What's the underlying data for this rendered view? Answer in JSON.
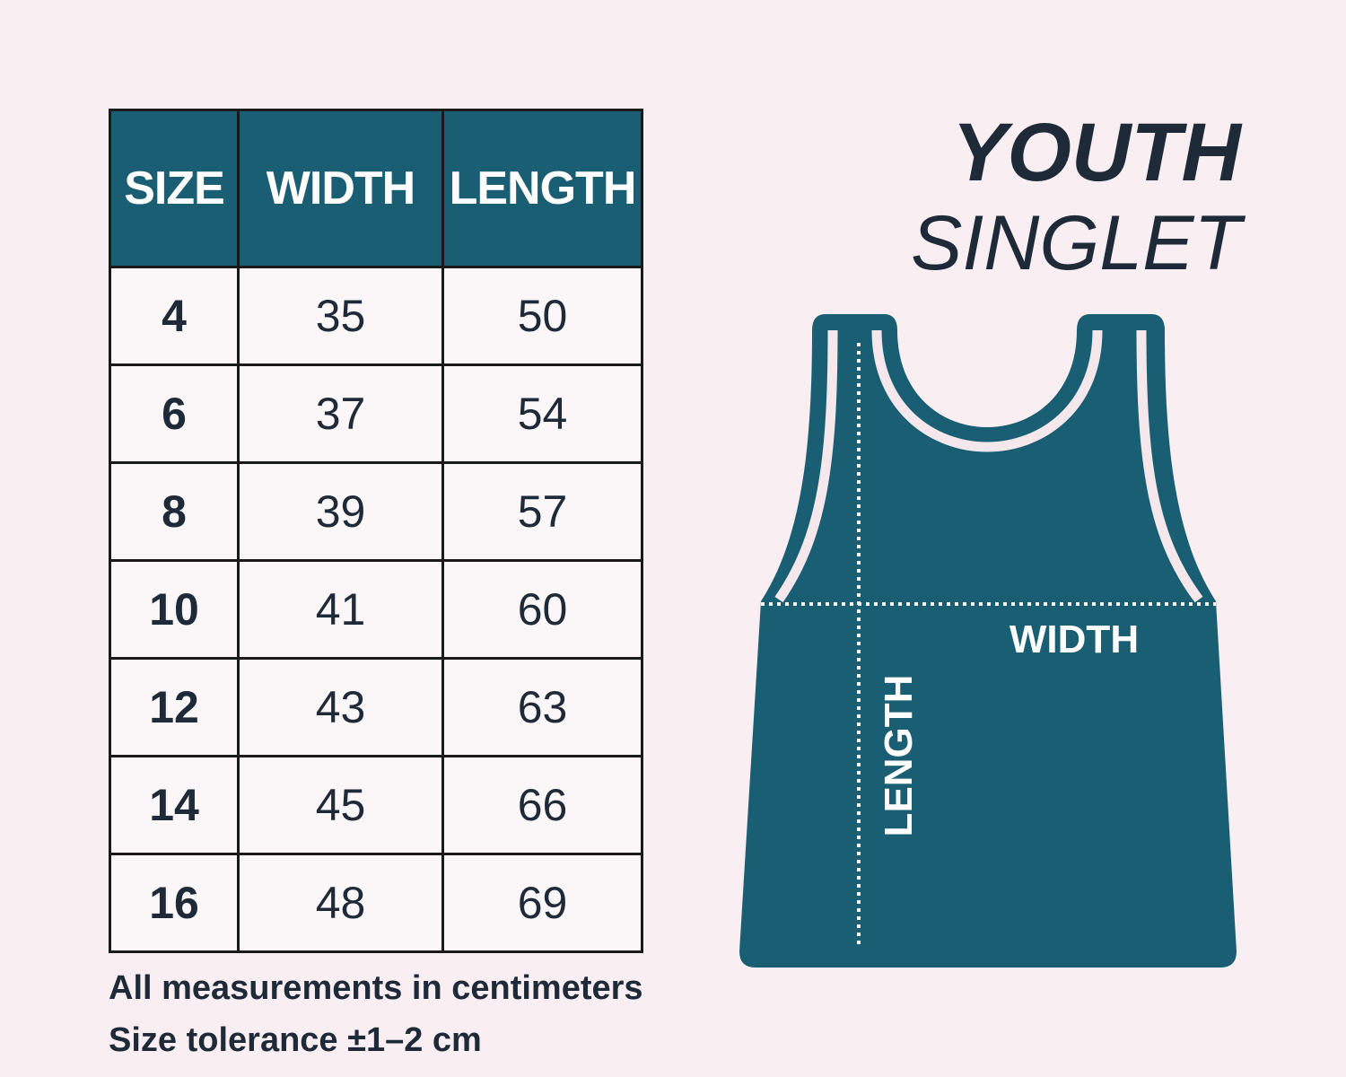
{
  "title": {
    "line1": "YOUTH",
    "line2": "SINGLET"
  },
  "table": {
    "header": [
      "SIZE",
      "WIDTH",
      "LENGTH"
    ],
    "rows": [
      [
        "4",
        "35",
        "50"
      ],
      [
        "6",
        "37",
        "54"
      ],
      [
        "8",
        "39",
        "57"
      ],
      [
        "10",
        "41",
        "60"
      ],
      [
        "12",
        "43",
        "63"
      ],
      [
        "14",
        "45",
        "66"
      ],
      [
        "16",
        "48",
        "69"
      ]
    ]
  },
  "notes": [
    "All measurements in centimeters",
    "Size tolerance ±1–2 cm"
  ],
  "diagram": {
    "width_label": "WIDTH",
    "length_label": "LENGTH"
  }
}
